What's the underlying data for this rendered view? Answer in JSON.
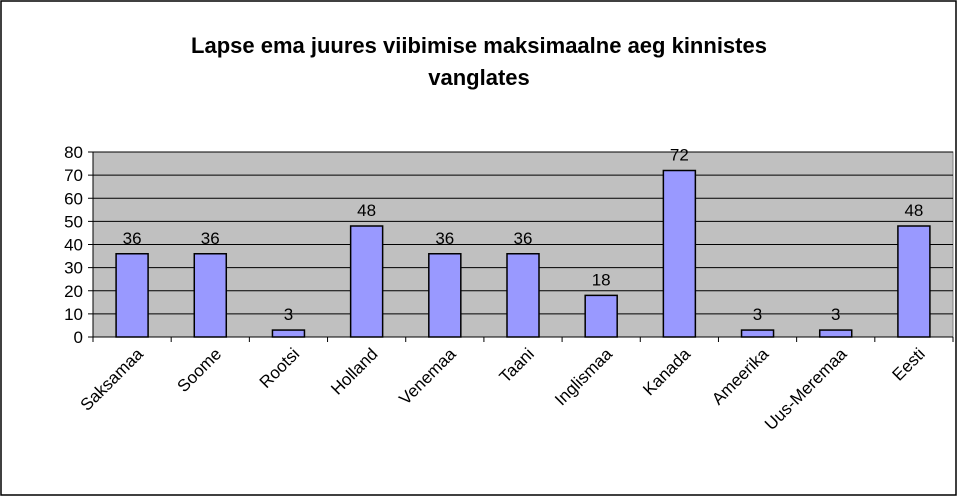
{
  "chart_data": {
    "type": "bar",
    "title": "Lapse ema juures viibimise maksimaalne aeg kinnistes vanglates",
    "categories": [
      "Saksamaa",
      "Soome",
      "Rootsi",
      "Holland",
      "Venemaa",
      "Taani",
      "Inglismaa",
      "Kanada",
      "Ameerika",
      "Uus-Meremaa",
      "Eesti"
    ],
    "values": [
      36,
      36,
      3,
      48,
      36,
      36,
      18,
      72,
      3,
      3,
      48
    ],
    "color": "#9999ff",
    "ylim": [
      0,
      80
    ],
    "yticks": [
      0,
      10,
      20,
      30,
      40,
      50,
      60,
      70,
      80
    ],
    "grid": true
  }
}
